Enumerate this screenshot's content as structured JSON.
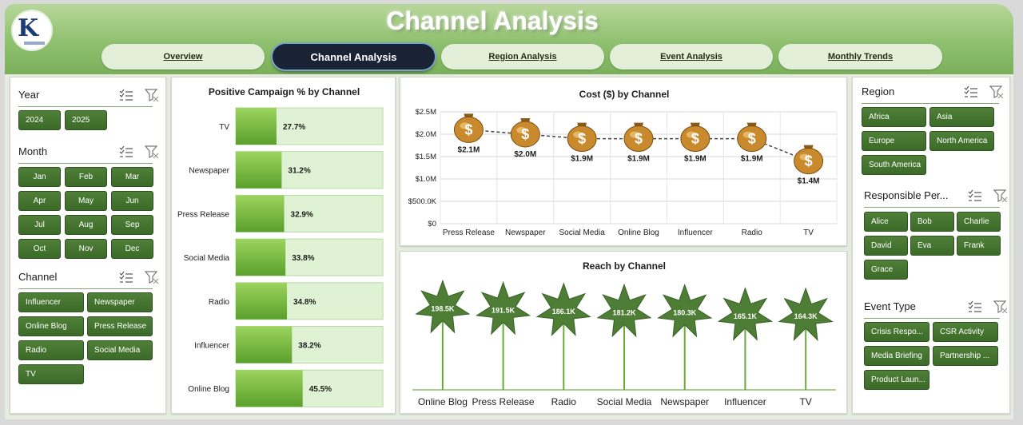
{
  "app": {
    "title": "Channel Analysis"
  },
  "tabs": [
    {
      "label": "Overview",
      "active": false
    },
    {
      "label": "Channel Analysis",
      "active": true
    },
    {
      "label": "Region Analysis",
      "active": false
    },
    {
      "label": "Event Analysis",
      "active": false
    },
    {
      "label": "Monthly Trends",
      "active": false
    }
  ],
  "filters": {
    "year": {
      "title": "Year",
      "items": [
        "2024",
        "2025"
      ]
    },
    "month": {
      "title": "Month",
      "items": [
        "Jan",
        "Feb",
        "Mar",
        "Apr",
        "May",
        "Jun",
        "Jul",
        "Aug",
        "Sep",
        "Oct",
        "Nov",
        "Dec"
      ]
    },
    "channel": {
      "title": "Channel",
      "items": [
        "Influencer",
        "Newspaper",
        "Online Blog",
        "Press Release",
        "Radio",
        "Social Media",
        "TV"
      ]
    },
    "region": {
      "title": "Region",
      "items": [
        "Africa",
        "Asia",
        "Europe",
        "North America",
        "South America"
      ]
    },
    "person": {
      "title": "Responsible Per...",
      "items": [
        "Alice",
        "Bob",
        "Charlie",
        "David",
        "Eva",
        "Frank",
        "Grace"
      ]
    },
    "event": {
      "title": "Event Type",
      "items": [
        "Crisis Respo...",
        "CSR Activity",
        "Media Briefing",
        "Partnership ...",
        "Product Laun..."
      ]
    }
  },
  "colors": {
    "accent": "#4a7a33",
    "bar_fill": "#7ec242",
    "bar_track": "#dff2d3",
    "header_green": "#8fc06f"
  },
  "chart_data": [
    {
      "type": "bar",
      "orientation": "horizontal",
      "title": "Positive Campaign % by Channel",
      "categories": [
        "TV",
        "Newspaper",
        "Press Release",
        "Social Media",
        "Radio",
        "Influencer",
        "Online Blog"
      ],
      "values": [
        27.7,
        31.2,
        32.9,
        33.8,
        34.8,
        38.2,
        45.5
      ],
      "labels": [
        "27.7%",
        "31.2%",
        "32.9%",
        "33.8%",
        "34.8%",
        "38.2%",
        "45.5%"
      ],
      "xlim": [
        0,
        100
      ]
    },
    {
      "type": "line",
      "title": "Cost ($) by Channel",
      "categories": [
        "Press Release",
        "Newspaper",
        "Social Media",
        "Online Blog",
        "Influencer",
        "Radio",
        "TV"
      ],
      "values": [
        2.1,
        2.0,
        1.9,
        1.9,
        1.9,
        1.9,
        1.4
      ],
      "labels": [
        "$2.1M",
        "$2.0M",
        "$1.9M",
        "$1.9M",
        "$1.9M",
        "$1.9M",
        "$1.4M"
      ],
      "yticks": [
        "$0",
        "$500.0K",
        "$1.0M",
        "$1.5M",
        "$2.0M",
        "$2.5M"
      ],
      "ylim": [
        0,
        2.5
      ],
      "grid": true,
      "marker": "money-bag-icon"
    },
    {
      "type": "scatter",
      "title": "Reach by Channel",
      "categories": [
        "Online Blog",
        "Press Release",
        "Radio",
        "Social Media",
        "Newspaper",
        "Influencer",
        "TV"
      ],
      "values": [
        198.5,
        191.5,
        186.1,
        181.2,
        180.3,
        165.1,
        164.3
      ],
      "labels": [
        "198.5K",
        "191.5K",
        "186.1K",
        "181.2K",
        "180.3K",
        "165.1K",
        "164.3K"
      ],
      "marker": "star-icon"
    }
  ]
}
